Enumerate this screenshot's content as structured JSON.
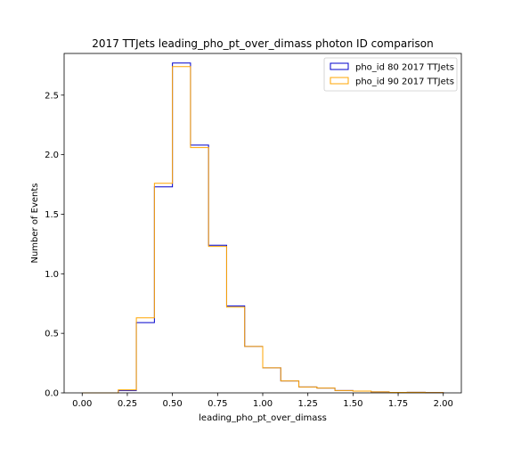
{
  "chart_data": {
    "type": "histogram-step",
    "title": "2017 TTJets leading_pho_pt_over_dimass photon ID comparison",
    "xlabel": "leading_pho_pt_over_dimass",
    "ylabel": "Number of Events",
    "xlim": [
      -0.1,
      2.1
    ],
    "ylim": [
      0,
      2.85
    ],
    "xticks": [
      0.0,
      0.25,
      0.5,
      0.75,
      1.0,
      1.25,
      1.5,
      1.75,
      2.0
    ],
    "xtick_labels": [
      "0.00",
      "0.25",
      "0.50",
      "0.75",
      "1.00",
      "1.25",
      "1.50",
      "1.75",
      "2.00"
    ],
    "yticks": [
      0.0,
      0.5,
      1.0,
      1.5,
      2.0,
      2.5
    ],
    "ytick_labels": [
      "0.0",
      "0.5",
      "1.0",
      "1.5",
      "2.0",
      "2.5"
    ],
    "bin_edges": [
      0.0,
      0.1,
      0.2,
      0.3,
      0.4,
      0.5,
      0.6,
      0.7,
      0.8,
      0.9,
      1.0,
      1.1,
      1.2,
      1.3,
      1.4,
      1.5,
      1.6,
      1.7,
      1.8,
      1.9,
      2.0
    ],
    "legend_position": "upper right",
    "grid": false,
    "series": [
      {
        "name": "pho_id 80 2017 TTJets",
        "color": "#0000cc",
        "values": [
          0,
          0,
          0.02,
          0.59,
          1.73,
          2.77,
          2.08,
          1.24,
          0.73,
          0.39,
          0.21,
          0.1,
          0.05,
          0.04,
          0.02,
          0.015,
          0.008,
          0.004,
          0.005,
          0.003
        ]
      },
      {
        "name": "pho_id 90 2017 TTJets",
        "color": "#ffa500",
        "values": [
          0,
          0,
          0.025,
          0.63,
          1.76,
          2.74,
          2.06,
          1.23,
          0.72,
          0.39,
          0.21,
          0.1,
          0.05,
          0.04,
          0.02,
          0.015,
          0.008,
          0.004,
          0.005,
          0.003
        ]
      }
    ]
  }
}
